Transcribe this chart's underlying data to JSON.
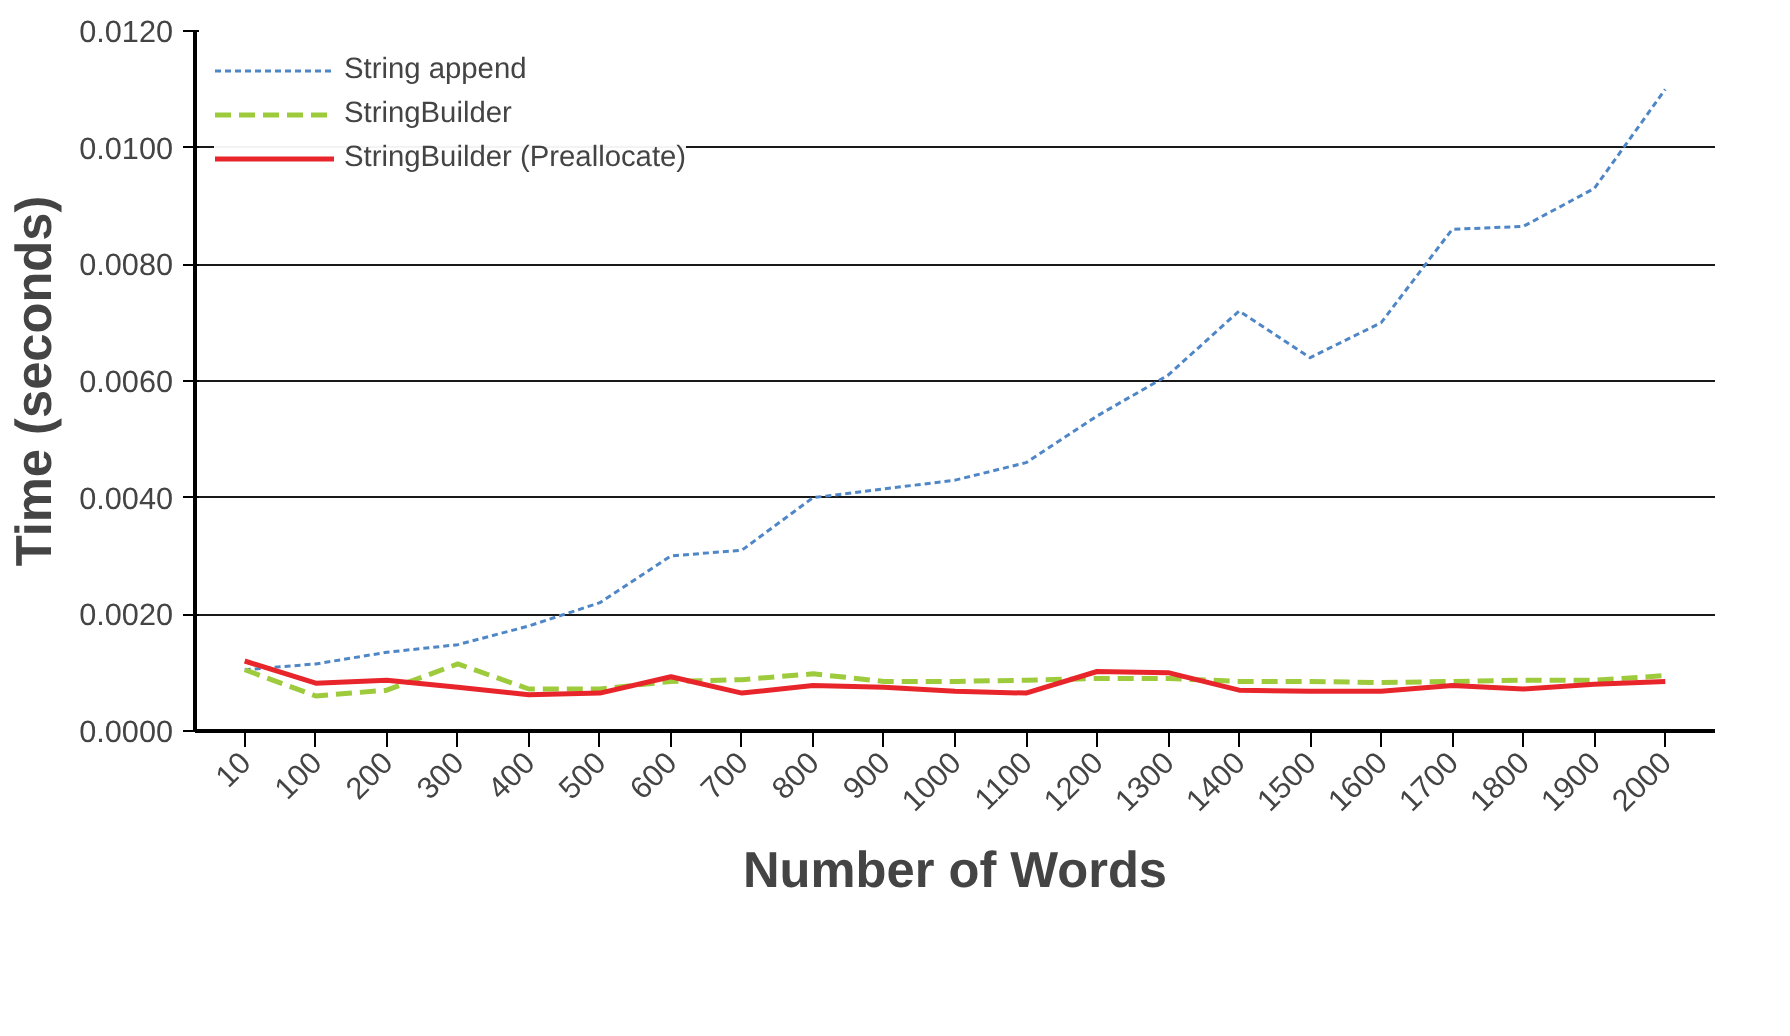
{
  "chart_data": {
    "type": "line",
    "xlabel": "Number of Words",
    "ylabel": "Time (seconds)",
    "categories": [
      "10",
      "100",
      "200",
      "300",
      "400",
      "500",
      "600",
      "700",
      "800",
      "900",
      "1000",
      "1100",
      "1200",
      "1300",
      "1400",
      "1500",
      "1600",
      "1700",
      "1800",
      "1900",
      "2000"
    ],
    "series": [
      {
        "name": "String append",
        "color": "#4f86c6",
        "line_style": "dotted",
        "values": [
          0.00105,
          0.00115,
          0.00135,
          0.00148,
          0.0018,
          0.0022,
          0.003,
          0.0031,
          0.004,
          0.00415,
          0.0043,
          0.0046,
          0.0054,
          0.0061,
          0.0072,
          0.0064,
          0.007,
          0.0086,
          0.00865,
          0.0093,
          0.011
        ]
      },
      {
        "name": "StringBuilder",
        "color": "#9dcb3c",
        "line_style": "dashed",
        "values": [
          0.00105,
          0.0006,
          0.0007,
          0.00115,
          0.00072,
          0.00072,
          0.00085,
          0.00088,
          0.00098,
          0.00085,
          0.00085,
          0.00087,
          0.0009,
          0.0009,
          0.00085,
          0.00085,
          0.00083,
          0.00085,
          0.00087,
          0.00087,
          0.00095
        ]
      },
      {
        "name": "StringBuilder (Preallocate)",
        "color": "#e8252b",
        "line_style": "solid",
        "values": [
          0.0012,
          0.00082,
          0.00087,
          0.00075,
          0.00062,
          0.00065,
          0.00093,
          0.00065,
          0.00078,
          0.00075,
          0.00068,
          0.00065,
          0.00102,
          0.001,
          0.0007,
          0.00068,
          0.00068,
          0.00078,
          0.00072,
          0.0008,
          0.00085
        ]
      }
    ],
    "ylim": [
      0,
      0.012
    ],
    "yticks": [
      {
        "value": 0,
        "label": "0.0000"
      },
      {
        "value": 0.002,
        "label": "0.0020"
      },
      {
        "value": 0.004,
        "label": "0.0040"
      },
      {
        "value": 0.006,
        "label": "0.0060"
      },
      {
        "value": 0.008,
        "label": "0.0080"
      },
      {
        "value": 0.01,
        "label": "0.0100"
      },
      {
        "value": 0.012,
        "label": "0.0120"
      }
    ],
    "grid": "y",
    "legend": "top left"
  }
}
